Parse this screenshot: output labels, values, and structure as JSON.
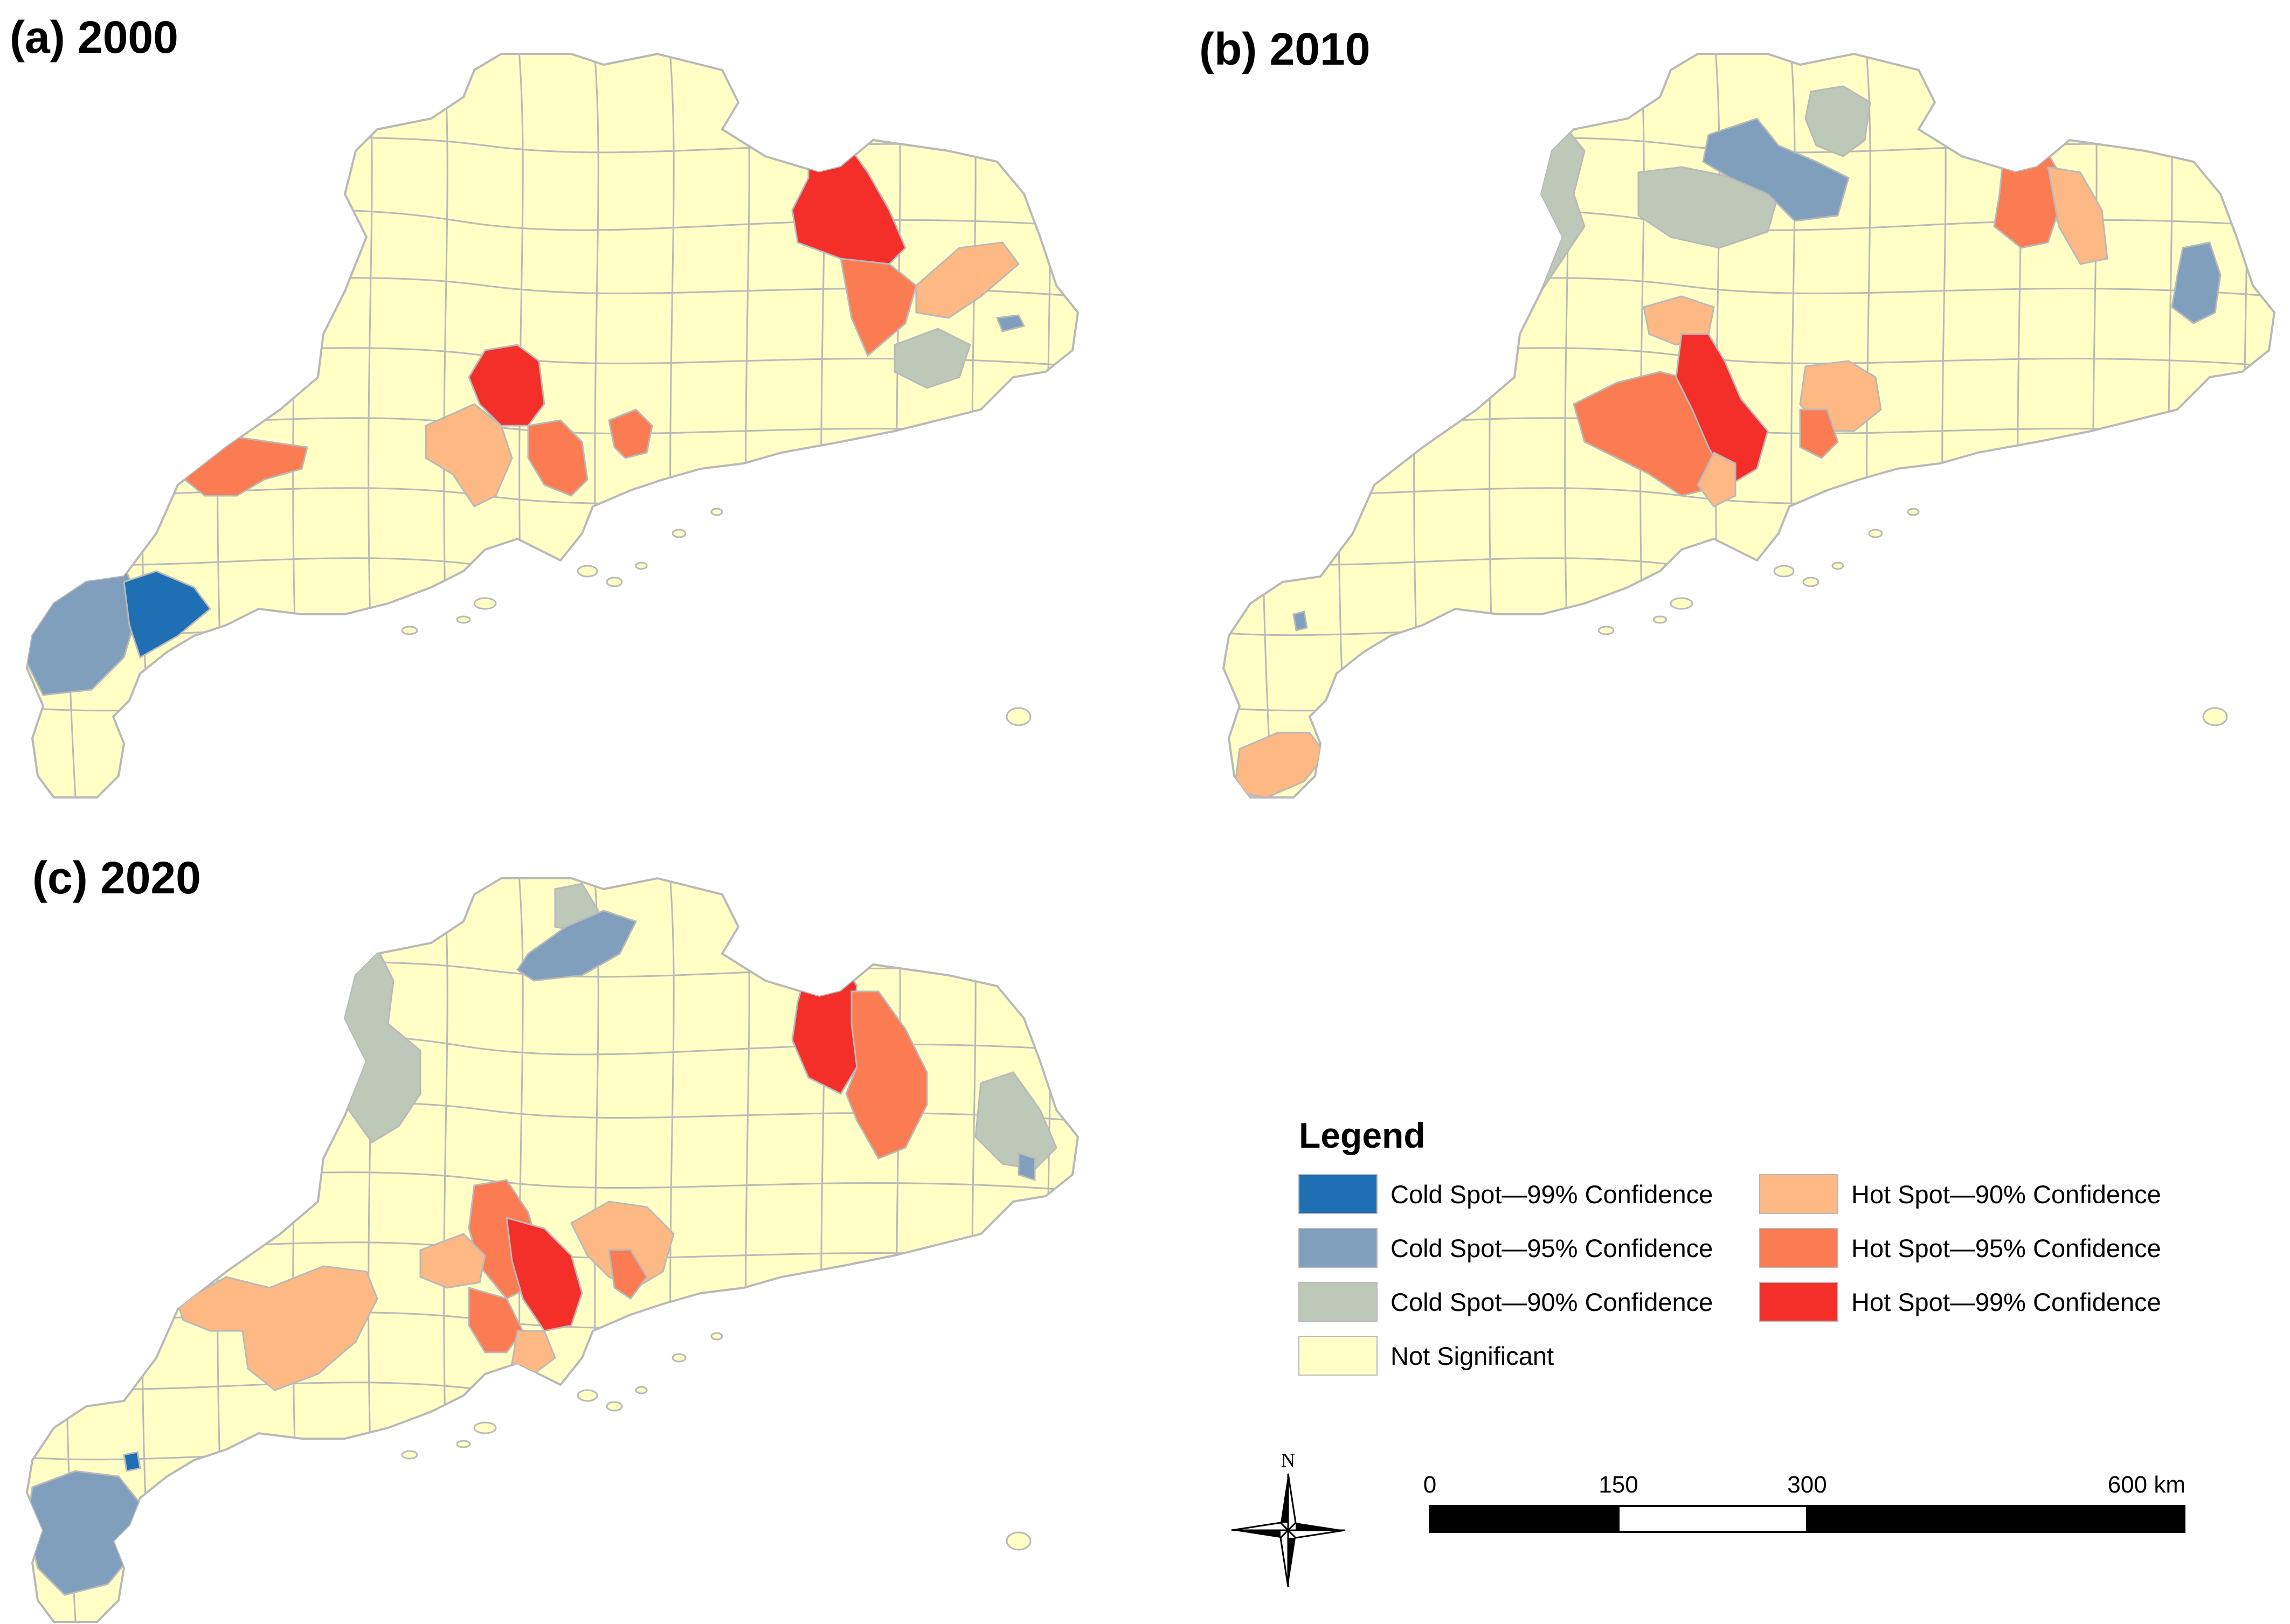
{
  "panels": [
    {
      "id": "a",
      "title": "(a) 2000"
    },
    {
      "id": "b",
      "title": "(b) 2010"
    },
    {
      "id": "c",
      "title": "(c) 2020"
    }
  ],
  "legend": {
    "title": "Legend",
    "items": [
      {
        "key": "cold99",
        "label": "Cold Spot—99% Confidence",
        "color": "#1f6fb4"
      },
      {
        "key": "cold95",
        "label": "Cold Spot—95% Confidence",
        "color": "#7f9fbd"
      },
      {
        "key": "cold90",
        "label": "Cold Spot—90% Confidence",
        "color": "#bdc8b8"
      },
      {
        "key": "ns",
        "label": "Not Significant",
        "color": "#ffffc6"
      },
      {
        "key": "hot90",
        "label": "Hot Spot—90% Confidence",
        "color": "#fdb884"
      },
      {
        "key": "hot95",
        "label": "Hot Spot—95% Confidence",
        "color": "#fb7b52"
      },
      {
        "key": "hot99",
        "label": "Hot Spot—99% Confidence",
        "color": "#f42f2a"
      }
    ]
  },
  "north_arrow": {
    "label": "N"
  },
  "scale_bar": {
    "labels": [
      "0",
      "150",
      "300",
      "600 km"
    ]
  },
  "colors": {
    "boundary": "#b9b9b9",
    "ns": "#ffffc6"
  }
}
